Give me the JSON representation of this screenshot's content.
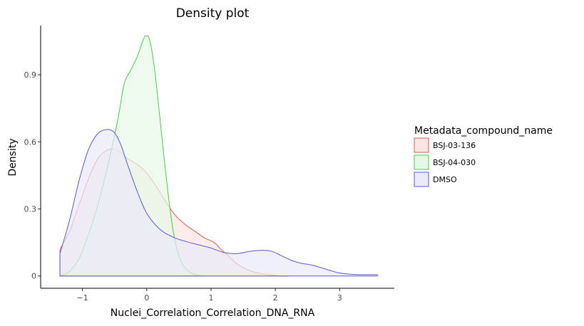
{
  "chart_data": {
    "type": "area",
    "title": "Density plot",
    "xlabel": "Nuclei_Correlation_Correlation_DNA_RNA",
    "ylabel": "Density",
    "xlim": [
      -1.65,
      3.85
    ],
    "ylim": [
      -0.055,
      1.12
    ],
    "x_ticks": [
      -1,
      0,
      1,
      2,
      3
    ],
    "x_tick_labels": [
      "−1",
      "0",
      "1",
      "2",
      "3"
    ],
    "y_ticks": [
      0,
      0.3,
      0.6,
      0.9
    ],
    "y_tick_labels": [
      "0",
      "0.3",
      "0.6",
      "0.9"
    ],
    "legend": {
      "title": "Metadata_compound_name",
      "position": "right"
    },
    "grid": false,
    "series": [
      {
        "name": "BSJ-03-136",
        "color": "#e2574c",
        "fill": "#fbe6e4",
        "x": [
          -1.35,
          -1.2,
          -1.05,
          -0.9,
          -0.75,
          -0.6,
          -0.5,
          -0.4,
          -0.3,
          -0.15,
          0.0,
          0.15,
          0.3,
          0.45,
          0.6,
          0.75,
          0.9,
          1.05,
          1.15,
          1.25,
          1.4,
          1.55,
          1.7,
          1.85,
          2.0,
          2.1,
          2.2
        ],
        "y": [
          0.12,
          0.2,
          0.32,
          0.44,
          0.53,
          0.565,
          0.567,
          0.55,
          0.525,
          0.5,
          0.46,
          0.4,
          0.33,
          0.27,
          0.23,
          0.2,
          0.17,
          0.15,
          0.12,
          0.095,
          0.055,
          0.03,
          0.015,
          0.007,
          0.002,
          0.0,
          0.0
        ]
      },
      {
        "name": "BSJ-04-030",
        "color": "#4cc94c",
        "fill": "#e6f8e6",
        "x": [
          -1.35,
          -1.2,
          -1.05,
          -0.9,
          -0.75,
          -0.6,
          -0.45,
          -0.35,
          -0.25,
          -0.15,
          -0.05,
          0.0,
          0.05,
          0.12,
          0.2,
          0.3,
          0.4,
          0.5,
          0.6,
          0.7,
          0.8,
          0.9
        ],
        "y": [
          0.0,
          0.02,
          0.08,
          0.19,
          0.33,
          0.5,
          0.7,
          0.86,
          0.92,
          0.98,
          1.06,
          1.075,
          1.05,
          0.93,
          0.72,
          0.45,
          0.22,
          0.09,
          0.035,
          0.012,
          0.003,
          0.0
        ]
      },
      {
        "name": "DMSO",
        "color": "#5a5ad6",
        "fill": "#e9e9f8",
        "x": [
          -1.35,
          -1.2,
          -1.05,
          -0.9,
          -0.75,
          -0.6,
          -0.5,
          -0.4,
          -0.3,
          -0.15,
          0.0,
          0.2,
          0.4,
          0.6,
          0.8,
          1.0,
          1.2,
          1.4,
          1.6,
          1.8,
          1.95,
          2.1,
          2.25,
          2.4,
          2.55,
          2.7,
          2.85,
          3.0,
          3.2,
          3.4,
          3.6
        ],
        "y": [
          0.1,
          0.25,
          0.43,
          0.57,
          0.64,
          0.655,
          0.64,
          0.585,
          0.5,
          0.38,
          0.28,
          0.21,
          0.175,
          0.155,
          0.14,
          0.125,
          0.105,
          0.1,
          0.11,
          0.115,
          0.11,
          0.09,
          0.07,
          0.057,
          0.05,
          0.038,
          0.025,
          0.013,
          0.007,
          0.006,
          0.006
        ]
      }
    ]
  }
}
